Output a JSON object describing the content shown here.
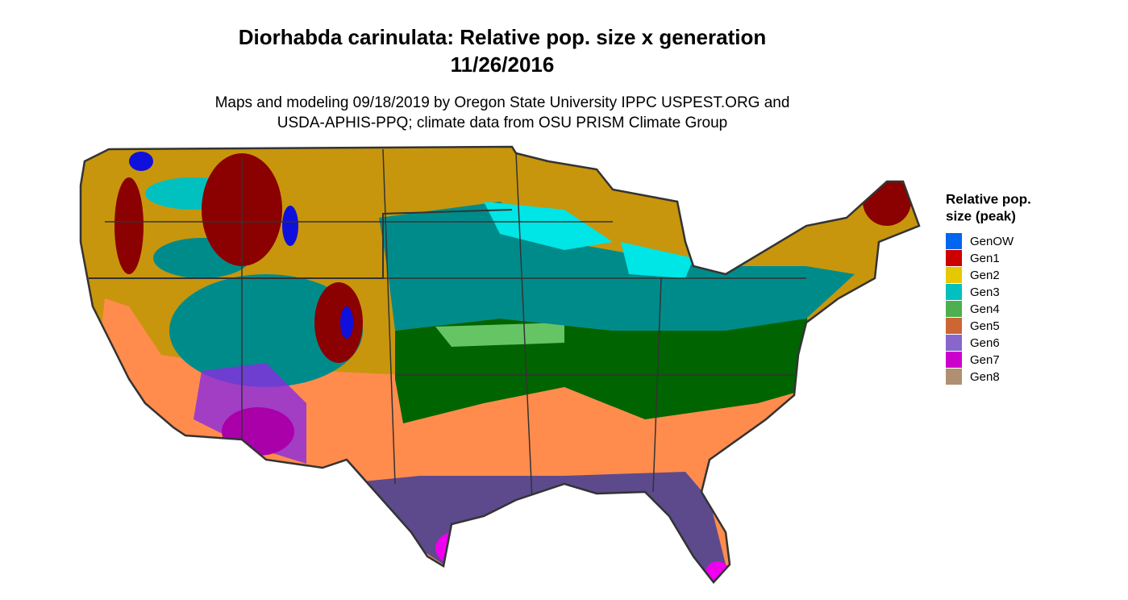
{
  "title": "Diorhabda carinulata: Relative pop. size x generation",
  "date": "11/26/2016",
  "subtitle": [
    "Maps and modeling 09/18/2019 by Oregon State University IPPC USPEST.ORG and",
    "USDA-APHIS-PPQ; climate data from OSU PRISM Climate Group"
  ],
  "legend": {
    "title": [
      "Relative pop.",
      "size (peak)"
    ],
    "items": [
      {
        "label": "GenOW",
        "color": "#0066ee"
      },
      {
        "label": "Gen1",
        "color": "#cc0000"
      },
      {
        "label": "Gen2",
        "color": "#e6c800"
      },
      {
        "label": "Gen3",
        "color": "#00c0c0"
      },
      {
        "label": "Gen4",
        "color": "#4caf50"
      },
      {
        "label": "Gen5",
        "color": "#cc6633"
      },
      {
        "label": "Gen6",
        "color": "#8866cc"
      },
      {
        "label": "Gen7",
        "color": "#cc00cc"
      },
      {
        "label": "Gen8",
        "color": "#b09070"
      }
    ]
  }
}
